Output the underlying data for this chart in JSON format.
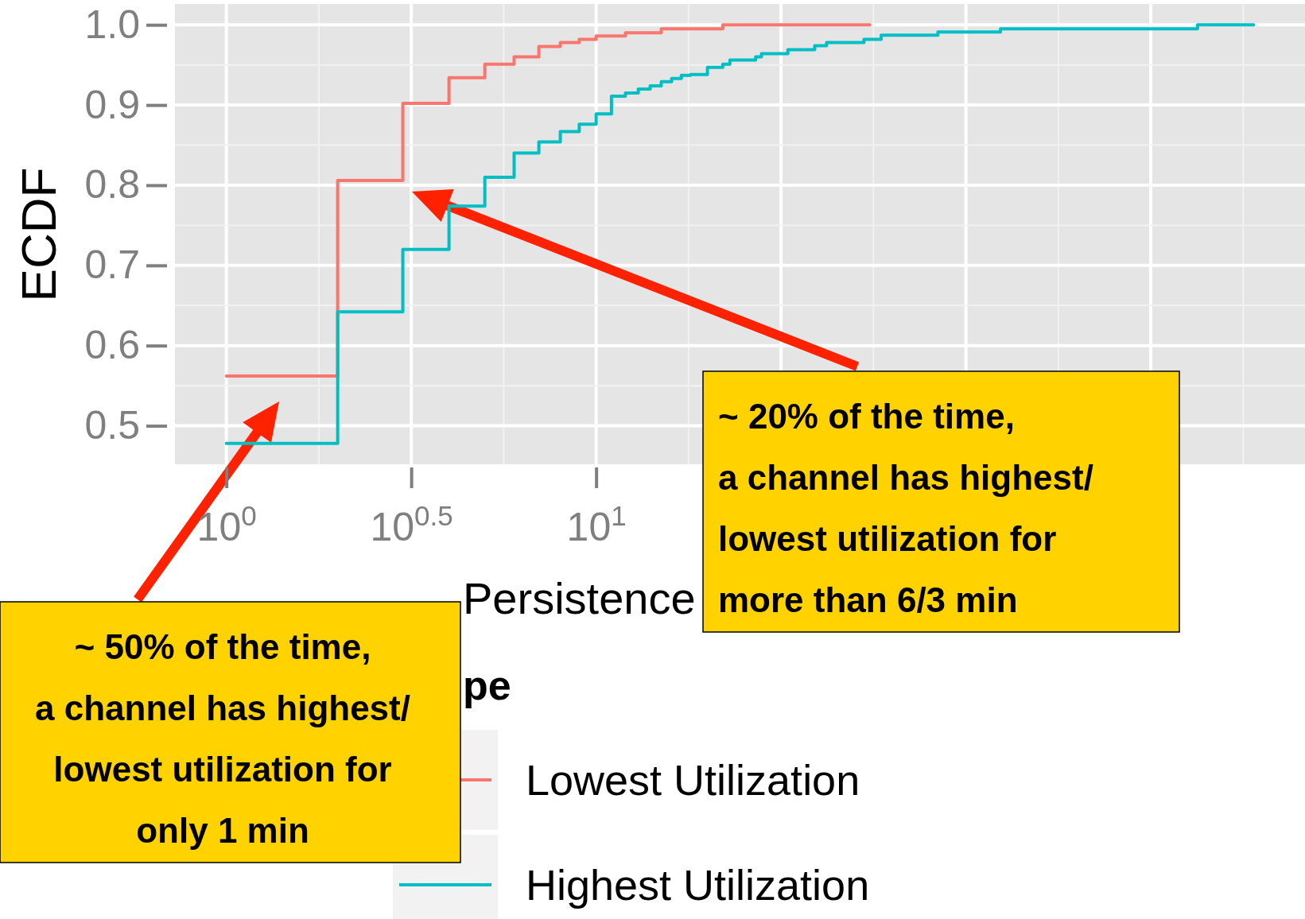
{
  "chart_data": {
    "type": "step",
    "xlabel": "Persistence",
    "ylabel": "ECDF",
    "legend_title": "pe",
    "log": "x",
    "grid": true,
    "legend": "bottom",
    "xlim": [
      0.726,
      826
    ],
    "ylim": [
      0.452,
      1.026
    ],
    "xticks": [
      {
        "value": 1,
        "label": "10$^{0}$"
      },
      {
        "value": 3.162,
        "label": "10$^{0.5}$"
      },
      {
        "value": 10,
        "label": "10$^{1}$"
      },
      {
        "value": 31.62,
        "label": null
      },
      {
        "value": 100,
        "label": null
      },
      {
        "value": 316.2,
        "label": null
      }
    ],
    "yticks": [
      0.5,
      0.6,
      0.7,
      0.8,
      0.9,
      {
        "value": 1,
        "label": "1.0"
      }
    ],
    "series": [
      {
        "name": "Lowest Utilization",
        "color": "#f8766d",
        "x": [
          1,
          2,
          3,
          4,
          5,
          6,
          7,
          8,
          9,
          10,
          12,
          15,
          22,
          55
        ],
        "values": [
          0.562,
          0.806,
          0.902,
          0.934,
          0.951,
          0.96,
          0.973,
          0.978,
          0.982,
          0.986,
          0.99,
          0.995,
          1,
          1
        ]
      },
      {
        "name": "Highest Utilization",
        "color": "#00bfc4",
        "x": [
          1,
          2,
          3,
          4,
          5,
          6,
          7,
          8,
          9,
          10,
          11,
          12,
          13,
          14,
          15,
          16,
          17,
          18,
          20,
          22,
          23,
          27,
          28,
          33,
          39,
          42,
          53,
          59,
          84,
          124,
          423,
          600
        ],
        "values": [
          0.478,
          0.642,
          0.72,
          0.774,
          0.81,
          0.84,
          0.854,
          0.867,
          0.876,
          0.889,
          0.911,
          0.915,
          0.92,
          0.924,
          0.929,
          0.933,
          0.937,
          0.938,
          0.947,
          0.951,
          0.956,
          0.96,
          0.964,
          0.969,
          0.974,
          0.978,
          0.982,
          0.987,
          0.991,
          0.995,
          1,
          1
        ]
      }
    ],
    "annotations": [
      "~ 50% of the time,\na channel has highest/\nlowest utilization for\nonly 1 min",
      "~ 20% of the time,\na channel has highest/\nlowest utilization for\nmore than 6/3 min"
    ]
  }
}
